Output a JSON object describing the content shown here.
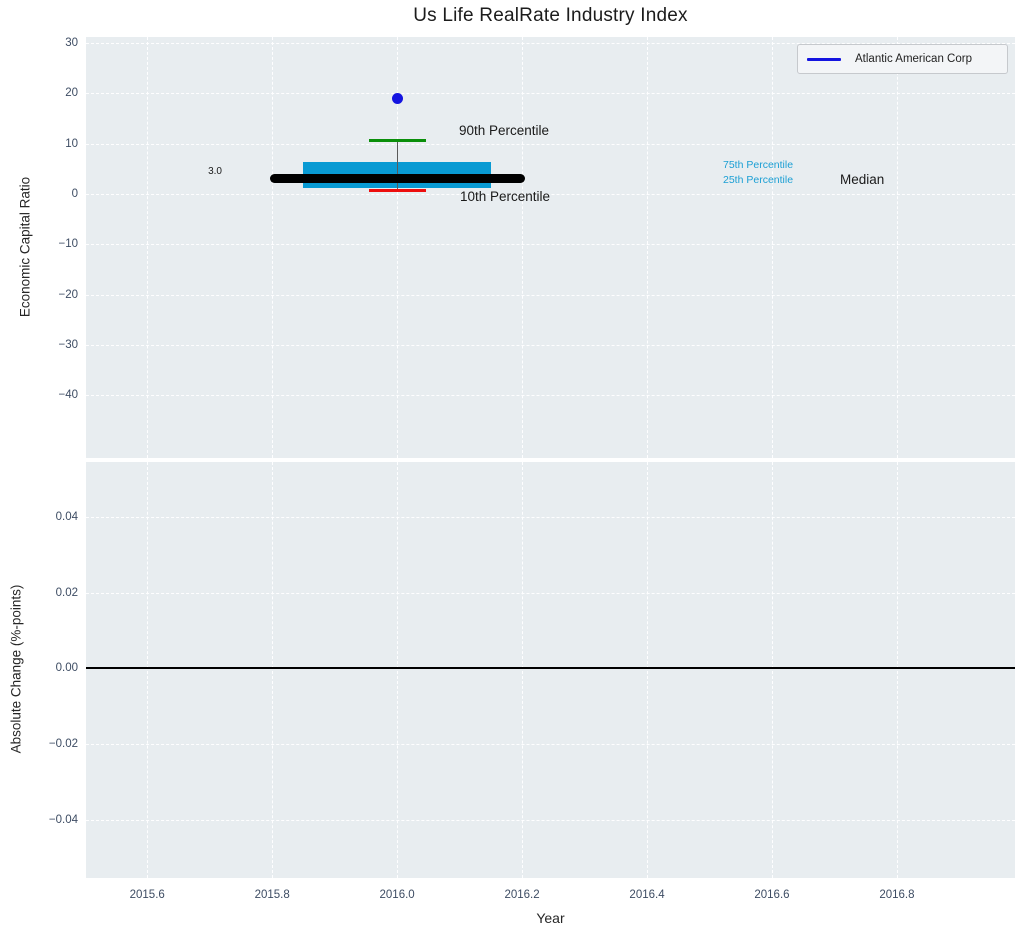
{
  "title": "Us Life RealRate Industry Index",
  "legend": {
    "label": "Atlantic American Corp"
  },
  "axes": {
    "top_ylabel": "Economic Capital Ratio",
    "bottom_ylabel": "Absolute Change (%-points)",
    "xlabel": "Year"
  },
  "annotations": {
    "p90_label": "90th Percentile",
    "p10_label": "10th Percentile",
    "p75_label": "75th Percentile",
    "p25_label": "25th Percentile",
    "median_label": "Median",
    "median_value": "3.0"
  },
  "colors": {
    "plot_background": "#e8edf0",
    "grid": "rgba(255,255,255,0.95)",
    "box_fill": "#089ad3",
    "p90_cap_green": "#0a8f0a",
    "p10_cap_red": "#ed0e0e",
    "median_line": "#000000",
    "whisker": "#5a5a5a",
    "outlier_dot": "#1414e0",
    "legend_line": "#1414e0",
    "percentile_label_blue": "#1b9fd4",
    "tick_label": "#3d4c63",
    "zero_line": "#000000"
  },
  "chart_data": [
    {
      "type": "boxplot",
      "subplot": "top",
      "title": "Us Life RealRate Industry Index",
      "ylabel": "Economic Capital Ratio",
      "xlabel": "",
      "xlim": [
        2015.502,
        2016.989
      ],
      "ylim": [
        -52.5,
        31.2
      ],
      "grid": true,
      "legend_position": "upper right",
      "legend_entries": [
        {
          "label": "Atlantic American Corp",
          "color": "#1414e0"
        }
      ],
      "yticks": [
        {
          "v": 30,
          "label": "30"
        },
        {
          "v": 20,
          "label": "20"
        },
        {
          "v": 10,
          "label": "10"
        },
        {
          "v": 0,
          "label": "0"
        },
        {
          "v": -10,
          "label": "−10"
        },
        {
          "v": -20,
          "label": "−20"
        },
        {
          "v": -30,
          "label": "−30"
        },
        {
          "v": -40,
          "label": "−40"
        }
      ],
      "xtick_values": [
        2015.6,
        2015.8,
        2016.0,
        2016.2,
        2016.4,
        2016.6,
        2016.8
      ],
      "series": [
        {
          "name": "Atlantic American Corp",
          "x": 2016.0,
          "p10": 0.7,
          "p25": 1.2,
          "median": 3.0,
          "p75": 6.4,
          "p90": 10.6,
          "outlier_y": 19.0,
          "box_left": 2015.85,
          "box_right": 2016.15,
          "median_left": 2015.796,
          "median_right": 2016.205,
          "cap_left": 2015.955,
          "cap_right": 2016.046
        }
      ]
    },
    {
      "type": "line",
      "subplot": "bottom",
      "ylabel": "Absolute Change (%-points)",
      "xlabel": "Year",
      "xlim": [
        2015.502,
        2016.989
      ],
      "ylim": [
        -0.0553,
        0.0545
      ],
      "grid": true,
      "yticks": [
        {
          "v": 0.04,
          "label": "0.04"
        },
        {
          "v": 0.02,
          "label": "0.02"
        },
        {
          "v": 0,
          "label": "0.00"
        },
        {
          "v": -0.02,
          "label": "−0.02"
        },
        {
          "v": -0.04,
          "label": "−0.04"
        }
      ],
      "xticks": [
        {
          "v": 2015.6,
          "label": "2015.6"
        },
        {
          "v": 2015.8,
          "label": "2015.8"
        },
        {
          "v": 2016.0,
          "label": "2016.0"
        },
        {
          "v": 2016.2,
          "label": "2016.2"
        },
        {
          "v": 2016.4,
          "label": "2016.4"
        },
        {
          "v": 2016.6,
          "label": "2016.6"
        },
        {
          "v": 2016.8,
          "label": "2016.8"
        }
      ],
      "series": [
        {
          "name": "zero-line",
          "y": 0.0
        }
      ]
    }
  ]
}
